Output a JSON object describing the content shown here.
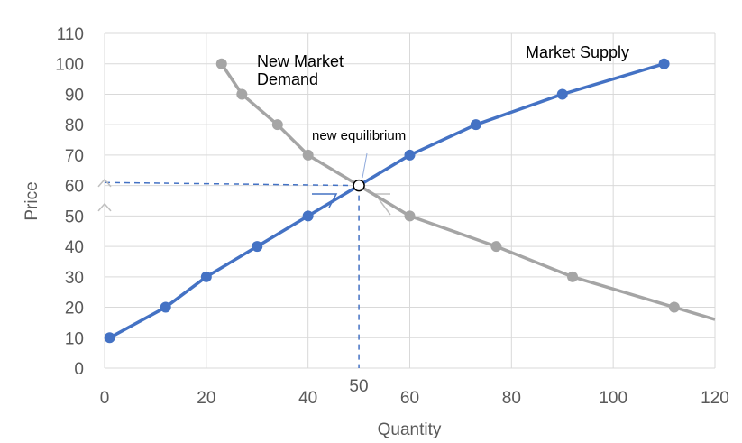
{
  "chart_data": {
    "type": "line",
    "xlabel": "Quantity",
    "ylabel": "Price",
    "xlim": [
      0,
      120
    ],
    "ylim": [
      0,
      110
    ],
    "x_ticks": [
      "0",
      "20",
      "40",
      "60",
      "80",
      "100",
      "120"
    ],
    "y_ticks": [
      "0",
      "10",
      "20",
      "30",
      "40",
      "50",
      "60",
      "70",
      "80",
      "90",
      "100",
      "110"
    ],
    "grid": true,
    "series": [
      {
        "name": "Market Supply",
        "color": "#4472c4",
        "points": [
          [
            1,
            10
          ],
          [
            12,
            20
          ],
          [
            20,
            30
          ],
          [
            30,
            40
          ],
          [
            40,
            50
          ],
          [
            50,
            60
          ],
          [
            60,
            70
          ],
          [
            73,
            80
          ],
          [
            90,
            90
          ],
          [
            110,
            100
          ]
        ]
      },
      {
        "name": "New Market Demand",
        "color": "#a5a5a5",
        "points": [
          [
            23,
            100
          ],
          [
            27,
            90
          ],
          [
            34,
            80
          ],
          [
            40,
            70
          ],
          [
            50,
            60
          ],
          [
            60,
            50
          ],
          [
            77,
            40
          ],
          [
            92,
            30
          ],
          [
            112,
            20
          ],
          [
            120,
            16
          ]
        ]
      }
    ],
    "equilibrium": {
      "label": "new equilibrium",
      "x": 50,
      "y": 60,
      "x_label": "50"
    },
    "reference_line_y": 61
  }
}
